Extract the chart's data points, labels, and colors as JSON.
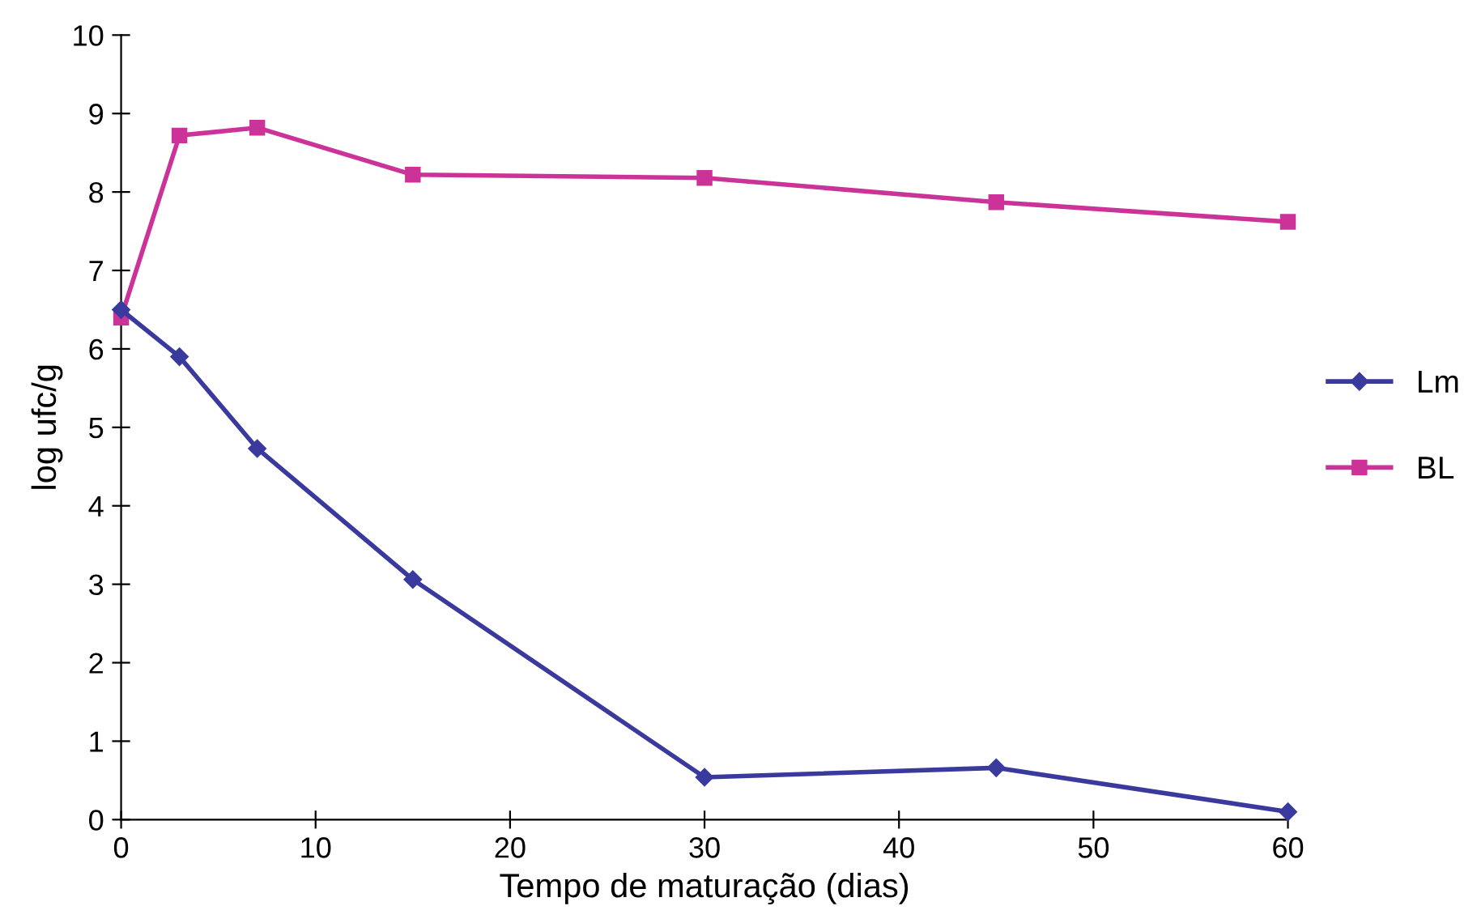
{
  "chart_data": {
    "type": "line",
    "xlabel": "Tempo de maturação (dias)",
    "ylabel": "log ufc/g",
    "x": [
      0,
      3,
      7,
      15,
      30,
      45,
      60
    ],
    "series": [
      {
        "name": "Lm",
        "color": "#3a3a9e",
        "marker": "diamond",
        "values": [
          6.5,
          5.9,
          4.73,
          3.06,
          0.54,
          0.66,
          0.1
        ]
      },
      {
        "name": "BL",
        "color": "#cc3399",
        "marker": "square",
        "values": [
          6.4,
          8.72,
          8.82,
          8.22,
          8.18,
          7.87,
          7.62
        ]
      }
    ],
    "xlim": [
      0,
      60
    ],
    "xticks": [
      0,
      10,
      20,
      30,
      40,
      50,
      60
    ],
    "ylim": [
      0,
      10
    ],
    "yticks": [
      0,
      1,
      2,
      3,
      4,
      5,
      6,
      7,
      8,
      9,
      10
    ],
    "grid": false,
    "legend": "right"
  }
}
